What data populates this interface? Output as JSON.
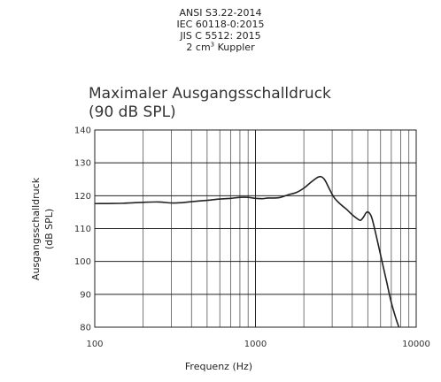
{
  "header": {
    "standards": [
      "ANSI S3.22-2014",
      "IEC 60118-0:2015",
      "JIS C 5512: 2015"
    ],
    "coupler_prefix": "2 cm",
    "coupler_sup": "3",
    "coupler_suffix": " Kuppler"
  },
  "chart_data": {
    "type": "line",
    "title": "Maximaler Ausgangsschalldruck",
    "subtitle": "(90 dB SPL)",
    "xlabel": "Frequenz (Hz)",
    "ylabel_line1": "Ausgangsschalldruck",
    "ylabel_line2": "(dB SPL)",
    "xscale": "log",
    "xlim": [
      100,
      10000
    ],
    "ylim": [
      80,
      140
    ],
    "x_ticks": [
      "100",
      "1000",
      "10000"
    ],
    "y_ticks": [
      "140",
      "130",
      "120",
      "110",
      "100",
      "90",
      "80"
    ],
    "grid": true,
    "series": [
      {
        "points": [
          [
            100,
            117.6
          ],
          [
            150,
            117.7
          ],
          [
            200,
            118.0
          ],
          [
            250,
            118.1
          ],
          [
            300,
            117.8
          ],
          [
            350,
            117.9
          ],
          [
            400,
            118.2
          ],
          [
            500,
            118.6
          ],
          [
            600,
            119.0
          ],
          [
            700,
            119.2
          ],
          [
            800,
            119.5
          ],
          [
            900,
            119.5
          ],
          [
            1000,
            119.2
          ],
          [
            1100,
            119.1
          ],
          [
            1200,
            119.3
          ],
          [
            1400,
            119.4
          ],
          [
            1600,
            120.3
          ],
          [
            1800,
            121.0
          ],
          [
            2000,
            122.3
          ],
          [
            2200,
            124.0
          ],
          [
            2400,
            125.4
          ],
          [
            2550,
            125.8
          ],
          [
            2700,
            124.8
          ],
          [
            2900,
            121.8
          ],
          [
            3100,
            119.3
          ],
          [
            3400,
            117.3
          ],
          [
            3700,
            115.8
          ],
          [
            4000,
            114.2
          ],
          [
            4300,
            113.0
          ],
          [
            4500,
            112.5
          ],
          [
            4700,
            113.5
          ],
          [
            4900,
            114.9
          ],
          [
            5100,
            114.8
          ],
          [
            5300,
            113.2
          ],
          [
            5600,
            108.5
          ],
          [
            6000,
            102.0
          ],
          [
            6500,
            94.5
          ],
          [
            7000,
            87.5
          ],
          [
            7500,
            82.5
          ],
          [
            7800,
            80.0
          ]
        ]
      }
    ]
  }
}
